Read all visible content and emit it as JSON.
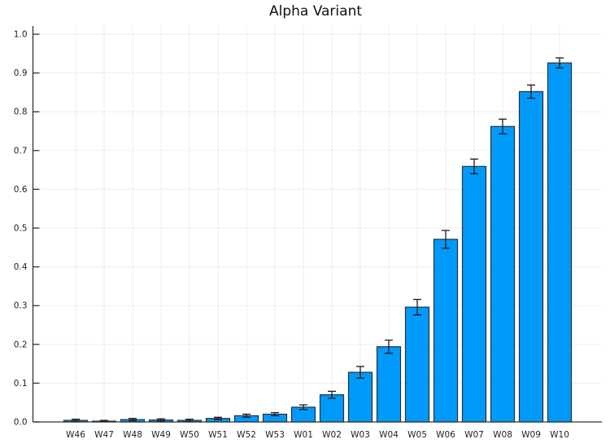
{
  "chart_data": {
    "type": "bar",
    "title": "Alpha Variant",
    "categories": [
      "W46",
      "W47",
      "W48",
      "W49",
      "W50",
      "W51",
      "W52",
      "W53",
      "W01",
      "W02",
      "W03",
      "W04",
      "W05",
      "W06",
      "W07",
      "W08",
      "W09",
      "W10"
    ],
    "values": [
      0.004,
      0.002,
      0.006,
      0.005,
      0.004,
      0.009,
      0.016,
      0.02,
      0.038,
      0.07,
      0.128,
      0.194,
      0.296,
      0.471,
      0.659,
      0.762,
      0.852,
      0.926
    ],
    "error_bars": [
      0.003,
      0.002,
      0.003,
      0.003,
      0.003,
      0.003,
      0.004,
      0.004,
      0.006,
      0.009,
      0.015,
      0.017,
      0.02,
      0.023,
      0.019,
      0.019,
      0.017,
      0.013
    ],
    "xlabel": "",
    "ylabel": "",
    "ylim": [
      0.0,
      1.02
    ],
    "yticks": [
      0.0,
      0.1,
      0.2,
      0.3,
      0.4,
      0.5,
      0.6,
      0.7,
      0.8,
      0.9,
      1.0
    ],
    "ytick_labels": [
      "0.0",
      "0.1",
      "0.2",
      "0.3",
      "0.4",
      "0.5",
      "0.6",
      "0.7",
      "0.8",
      "0.9",
      "1.0"
    ],
    "grid": true,
    "legend_position": "none",
    "bar_color": "#009AFA",
    "bar_edge_color": "#27313B",
    "error_bar_color": "#1a1a1a",
    "grid_color": "#EDEDED",
    "axis_color": "#333333",
    "background_color": "#FFFFFF"
  }
}
